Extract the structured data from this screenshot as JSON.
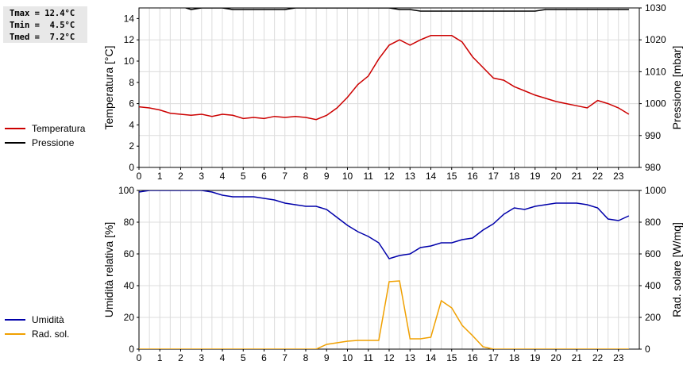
{
  "stats": {
    "lines": [
      "Tmax = 12.4°C",
      "Tmin =  4.5°C",
      "Tmed =  7.2°C"
    ]
  },
  "legend_top": [
    {
      "label": "Temperatura",
      "color": "#cc0000"
    },
    {
      "label": "Pressione",
      "color": "#000000"
    }
  ],
  "legend_bottom": [
    {
      "label": "Umidità",
      "color": "#0000aa"
    },
    {
      "label": "Rad. sol.",
      "color": "#f0a000"
    }
  ],
  "chart_data": [
    {
      "type": "line",
      "xlabel": "",
      "ylabel": "Temperatura [°C]",
      "y2label": "Pressione [mbar]",
      "x_ticks": [
        "0",
        "1",
        "2",
        "3",
        "4",
        "5",
        "6",
        "7",
        "8",
        "9",
        "10",
        "11",
        "12",
        "13",
        "14",
        "15",
        "16",
        "17",
        "18",
        "19",
        "20",
        "21",
        "22",
        "23"
      ],
      "xlim": [
        0,
        24
      ],
      "ylim": [
        0,
        15
      ],
      "y_ticks": [
        "0",
        "2",
        "4",
        "6",
        "8",
        "10",
        "12",
        "14"
      ],
      "y2lim": [
        980,
        1030
      ],
      "y2_ticks": [
        "980",
        "990",
        "1000",
        "1010",
        "1020",
        "1030"
      ],
      "grid": true,
      "series": [
        {
          "name": "Temperatura",
          "axis": "left",
          "color": "#cc0000",
          "x": [
            0,
            0.5,
            1,
            1.5,
            2,
            2.5,
            3,
            3.5,
            4,
            4.5,
            5,
            5.5,
            6,
            6.5,
            7,
            7.5,
            8,
            8.5,
            9,
            9.5,
            10,
            10.5,
            11,
            11.5,
            12,
            12.5,
            13,
            13.5,
            14,
            14.5,
            15,
            15.5,
            16,
            16.5,
            17,
            17.5,
            18,
            18.5,
            19,
            19.5,
            20,
            20.5,
            21,
            21.5,
            22,
            22.5,
            23,
            23.5
          ],
          "y": [
            5.7,
            5.6,
            5.4,
            5.1,
            5.0,
            4.9,
            5.0,
            4.8,
            5.0,
            4.9,
            4.6,
            4.7,
            4.6,
            4.8,
            4.7,
            4.8,
            4.7,
            4.5,
            4.9,
            5.6,
            6.6,
            7.8,
            8.6,
            10.2,
            11.5,
            12.0,
            11.5,
            12.0,
            12.4,
            12.4,
            12.4,
            11.8,
            10.4,
            9.4,
            8.4,
            8.2,
            7.6,
            7.2,
            6.8,
            6.5,
            6.2,
            6.0,
            5.8,
            5.6,
            6.3,
            6.0,
            5.6,
            5.0
          ]
        },
        {
          "name": "Pressione",
          "axis": "right",
          "color": "#000000",
          "x": [
            0,
            0.5,
            1,
            1.5,
            2,
            2.5,
            3,
            3.5,
            4,
            4.5,
            5,
            5.5,
            6,
            6.5,
            7,
            7.5,
            8,
            8.5,
            9,
            9.5,
            10,
            10.5,
            11,
            11.5,
            12,
            12.5,
            13,
            13.5,
            14,
            14.5,
            15,
            15.5,
            16,
            16.5,
            17,
            17.5,
            18,
            18.5,
            19,
            19.5,
            20,
            20.5,
            21,
            21.5,
            22,
            22.5,
            23,
            23.5
          ],
          "y": [
            1031,
            1031,
            1031,
            1031,
            1030.5,
            1029.5,
            1030,
            1030,
            1030,
            1029.5,
            1029.5,
            1029.5,
            1029.5,
            1029.5,
            1029.5,
            1030,
            1030,
            1030,
            1030,
            1030,
            1030,
            1030,
            1030,
            1030,
            1030,
            1029.5,
            1029.5,
            1029,
            1029,
            1029,
            1029,
            1029,
            1029,
            1029,
            1029,
            1029,
            1029,
            1029,
            1029,
            1029.5,
            1029.5,
            1029.5,
            1029.5,
            1029.5,
            1029.5,
            1029.5,
            1029.5,
            1029.5
          ]
        }
      ]
    },
    {
      "type": "line",
      "xlabel": "",
      "ylabel": "Umidità relativa [%]",
      "y2label": "Rad. solare [W/mq]",
      "x_ticks": [
        "0",
        "1",
        "2",
        "3",
        "4",
        "5",
        "6",
        "7",
        "8",
        "9",
        "10",
        "11",
        "12",
        "13",
        "14",
        "15",
        "16",
        "17",
        "18",
        "19",
        "20",
        "21",
        "22",
        "23"
      ],
      "xlim": [
        0,
        24
      ],
      "ylim": [
        0,
        100
      ],
      "y_ticks": [
        "0",
        "20",
        "40",
        "60",
        "80",
        "100"
      ],
      "y2lim": [
        0,
        1000
      ],
      "y2_ticks": [
        "0",
        "200",
        "400",
        "600",
        "800",
        "1000"
      ],
      "grid": true,
      "series": [
        {
          "name": "Umidità",
          "axis": "left",
          "color": "#0000aa",
          "x": [
            0,
            0.5,
            1,
            1.5,
            2,
            2.5,
            3,
            3.5,
            4,
            4.5,
            5,
            5.5,
            6,
            6.5,
            7,
            7.5,
            8,
            8.5,
            9,
            9.5,
            10,
            10.5,
            11,
            11.5,
            12,
            12.5,
            13,
            13.5,
            14,
            14.5,
            15,
            15.5,
            16,
            16.5,
            17,
            17.5,
            18,
            18.5,
            19,
            19.5,
            20,
            20.5,
            21,
            21.5,
            22,
            22.5,
            23,
            23.5
          ],
          "y": [
            99,
            100,
            100,
            100,
            100,
            100,
            100,
            99,
            97,
            96,
            96,
            96,
            95,
            94,
            92,
            91,
            90,
            90,
            88,
            83,
            78,
            74,
            71,
            67,
            57,
            59,
            60,
            64,
            65,
            67,
            67,
            69,
            70,
            75,
            79,
            85,
            89,
            88,
            90,
            91,
            92,
            92,
            92,
            91,
            89,
            82,
            81,
            84
          ]
        },
        {
          "name": "Rad. sol.",
          "axis": "right",
          "color": "#f0a000",
          "x": [
            0,
            1,
            2,
            3,
            4,
            5,
            6,
            7,
            8,
            8.5,
            9,
            9.5,
            10,
            10.5,
            11,
            11.5,
            12,
            12.5,
            13,
            13.5,
            14,
            14.5,
            15,
            15.5,
            16,
            16.5,
            17,
            18,
            19,
            20,
            21,
            22,
            23,
            23.5
          ],
          "y": [
            0,
            0,
            0,
            0,
            0,
            0,
            0,
            0,
            0,
            0,
            30,
            40,
            50,
            55,
            55,
            55,
            425,
            430,
            65,
            65,
            75,
            305,
            260,
            150,
            85,
            15,
            0,
            0,
            0,
            0,
            0,
            0,
            0,
            0
          ]
        }
      ]
    }
  ]
}
